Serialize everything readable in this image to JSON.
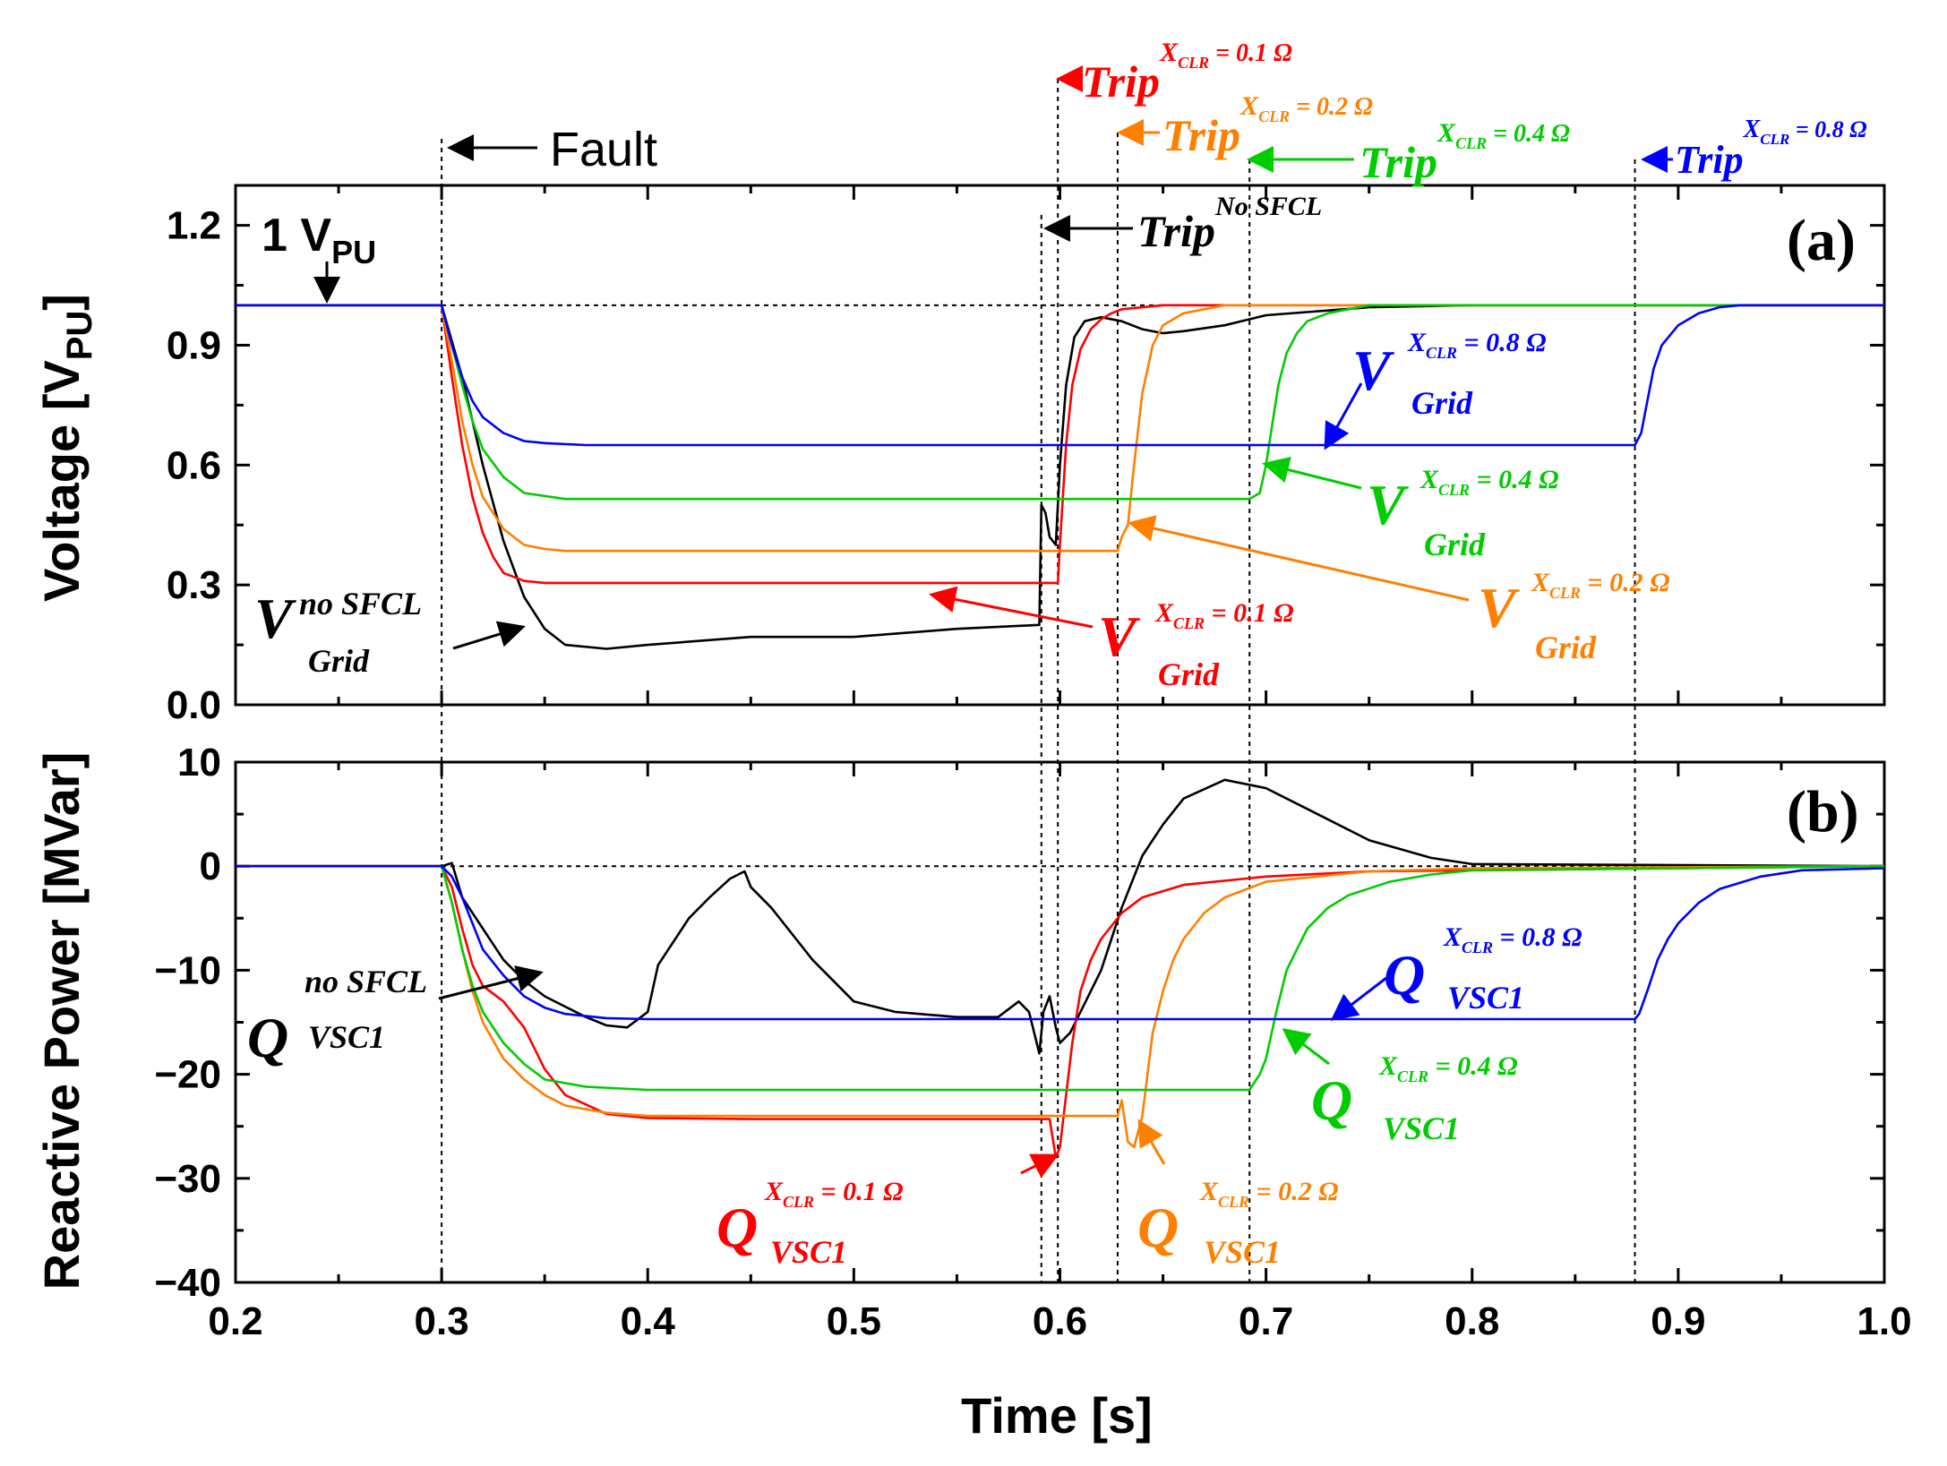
{
  "chart_data": [
    {
      "type": "line",
      "panel": "(a)",
      "ylabel": "Voltage [V",
      "ylabel_sub": "PU",
      "ylabel_close": "]",
      "xlim": [
        0.2,
        1.0
      ],
      "ylim": [
        0.0,
        1.3
      ],
      "yticks": [
        "0.0",
        "0.3",
        "0.6",
        "0.9",
        "1.2"
      ],
      "ytick_values": [
        0.0,
        0.3,
        0.6,
        0.9,
        1.2
      ],
      "reference_label_main": "1 V",
      "reference_label_sub": "PU",
      "reference_value": 1.0,
      "series": [
        {
          "name": "V Grid no SFCL",
          "color": "#000000",
          "x": [
            0.2,
            0.3,
            0.31,
            0.32,
            0.33,
            0.34,
            0.35,
            0.36,
            0.38,
            0.4,
            0.45,
            0.5,
            0.55,
            0.59,
            0.591,
            0.593,
            0.595,
            0.598,
            0.6,
            0.603,
            0.607,
            0.612,
            0.62,
            0.63,
            0.64,
            0.65,
            0.66,
            0.68,
            0.7,
            0.75,
            0.8,
            1.0
          ],
          "y": [
            1.0,
            1.0,
            0.82,
            0.6,
            0.41,
            0.27,
            0.19,
            0.15,
            0.14,
            0.15,
            0.17,
            0.17,
            0.19,
            0.2,
            0.5,
            0.48,
            0.42,
            0.4,
            0.6,
            0.8,
            0.92,
            0.96,
            0.97,
            0.96,
            0.94,
            0.93,
            0.935,
            0.95,
            0.975,
            0.995,
            1.0,
            1.0
          ]
        },
        {
          "name": "V Grid XCLR = 0.1 Ω",
          "color": "#ff0000",
          "x": [
            0.2,
            0.3,
            0.305,
            0.31,
            0.315,
            0.32,
            0.325,
            0.33,
            0.34,
            0.35,
            0.59,
            0.599,
            0.6,
            0.603,
            0.606,
            0.61,
            0.615,
            0.62,
            0.625,
            0.63,
            0.64,
            0.65,
            1.0
          ],
          "y": [
            1.0,
            1.0,
            0.82,
            0.65,
            0.52,
            0.43,
            0.37,
            0.33,
            0.31,
            0.305,
            0.305,
            0.305,
            0.4,
            0.65,
            0.8,
            0.89,
            0.94,
            0.965,
            0.98,
            0.99,
            0.995,
            1.0,
            1.0
          ]
        },
        {
          "name": "V Grid XCLR = 0.2 Ω",
          "color": "#ff8000",
          "x": [
            0.2,
            0.3,
            0.305,
            0.31,
            0.315,
            0.32,
            0.33,
            0.34,
            0.35,
            0.36,
            0.4,
            0.628,
            0.63,
            0.633,
            0.636,
            0.64,
            0.645,
            0.65,
            0.66,
            0.67,
            0.68,
            1.0
          ],
          "y": [
            1.0,
            1.0,
            0.86,
            0.71,
            0.6,
            0.52,
            0.44,
            0.4,
            0.39,
            0.385,
            0.385,
            0.385,
            0.42,
            0.45,
            0.6,
            0.78,
            0.9,
            0.95,
            0.98,
            0.99,
            1.0,
            1.0
          ]
        },
        {
          "name": "V Grid XCLR = 0.4 Ω",
          "color": "#00cc00",
          "x": [
            0.2,
            0.3,
            0.305,
            0.31,
            0.315,
            0.32,
            0.33,
            0.34,
            0.36,
            0.4,
            0.692,
            0.697,
            0.7,
            0.703,
            0.706,
            0.71,
            0.715,
            0.72,
            0.73,
            0.74,
            0.75,
            1.0
          ],
          "y": [
            1.0,
            1.0,
            0.9,
            0.8,
            0.71,
            0.64,
            0.57,
            0.53,
            0.515,
            0.515,
            0.515,
            0.53,
            0.6,
            0.7,
            0.8,
            0.88,
            0.93,
            0.96,
            0.98,
            0.99,
            1.0,
            1.0
          ]
        },
        {
          "name": "V Grid XCLR = 0.8 Ω",
          "color": "#0000ff",
          "x": [
            0.2,
            0.3,
            0.305,
            0.31,
            0.315,
            0.32,
            0.33,
            0.34,
            0.35,
            0.37,
            0.879,
            0.882,
            0.885,
            0.888,
            0.892,
            0.9,
            0.91,
            0.92,
            0.93,
            1.0
          ],
          "y": [
            1.0,
            1.0,
            0.9,
            0.82,
            0.76,
            0.72,
            0.68,
            0.66,
            0.655,
            0.65,
            0.65,
            0.68,
            0.76,
            0.84,
            0.9,
            0.95,
            0.98,
            0.995,
            1.0,
            1.0
          ]
        }
      ],
      "annotations": [
        {
          "main": "V",
          "sup": "no SFCL",
          "sub": "Grid",
          "color": "#000000"
        },
        {
          "main": "V",
          "sup": "X",
          "sup_sub": "CLR",
          "sup_tail": " = 0.1 Ω",
          "sub": "Grid",
          "color": "#ff0000"
        },
        {
          "main": "V",
          "sup": "X",
          "sup_sub": "CLR",
          "sup_tail": " = 0.2 Ω",
          "sub": "Grid",
          "color": "#ff8000"
        },
        {
          "main": "V",
          "sup": "X",
          "sup_sub": "CLR",
          "sup_tail": " = 0.4 Ω",
          "sub": "Grid",
          "color": "#00cc00"
        },
        {
          "main": "V",
          "sup": "X",
          "sup_sub": "CLR",
          "sup_tail": " = 0.8 Ω",
          "sub": "Grid",
          "color": "#0000ff"
        }
      ]
    },
    {
      "type": "line",
      "panel": "(b)",
      "ylabel": "Reactive Power [MVar]",
      "xlabel": "Time [s]",
      "xlim": [
        0.2,
        1.0
      ],
      "ylim": [
        -40,
        10
      ],
      "xticks": [
        "0.2",
        "0.3",
        "0.4",
        "0.5",
        "0.6",
        "0.7",
        "0.8",
        "0.9",
        "1.0"
      ],
      "xtick_values": [
        0.2,
        0.3,
        0.4,
        0.5,
        0.6,
        0.7,
        0.8,
        0.9,
        1.0
      ],
      "yticks": [
        "10",
        "0",
        "−10",
        "−20",
        "−30",
        "−40"
      ],
      "ytick_values": [
        10,
        0,
        -10,
        -20,
        -30,
        -40
      ],
      "series": [
        {
          "name": "Q VSC1 no SFCL",
          "color": "#000000",
          "x": [
            0.2,
            0.3,
            0.305,
            0.31,
            0.32,
            0.33,
            0.34,
            0.35,
            0.36,
            0.37,
            0.38,
            0.39,
            0.4,
            0.405,
            0.41,
            0.42,
            0.43,
            0.44,
            0.447,
            0.45,
            0.46,
            0.48,
            0.5,
            0.52,
            0.55,
            0.57,
            0.58,
            0.585,
            0.59,
            0.592,
            0.595,
            0.598,
            0.6,
            0.605,
            0.61,
            0.62,
            0.63,
            0.64,
            0.65,
            0.66,
            0.68,
            0.7,
            0.72,
            0.75,
            0.78,
            0.8,
            1.0
          ],
          "y": [
            0,
            0,
            0.3,
            -3,
            -6,
            -9,
            -11,
            -12.5,
            -13.5,
            -14.5,
            -15.3,
            -15.5,
            -14,
            -9.5,
            -8,
            -5,
            -3,
            -1.2,
            -0.5,
            -2,
            -4,
            -9,
            -13,
            -14,
            -14.5,
            -14.5,
            -13,
            -14,
            -18,
            -14,
            -12.5,
            -15.5,
            -17,
            -16,
            -14,
            -10,
            -4,
            1,
            4,
            6.5,
            8.3,
            7.5,
            5.5,
            2.5,
            0.8,
            0.2,
            0
          ]
        },
        {
          "name": "Q VSC1 XCLR = 0.1 Ω",
          "color": "#ff0000",
          "x": [
            0.2,
            0.3,
            0.305,
            0.31,
            0.315,
            0.32,
            0.33,
            0.34,
            0.35,
            0.36,
            0.38,
            0.4,
            0.45,
            0.55,
            0.595,
            0.598,
            0.6,
            0.603,
            0.606,
            0.61,
            0.615,
            0.62,
            0.63,
            0.64,
            0.66,
            0.7,
            0.75,
            1.0
          ],
          "y": [
            0,
            0,
            -2,
            -6,
            -9.5,
            -11.5,
            -13,
            -15.5,
            -19.5,
            -22,
            -23.8,
            -24.2,
            -24.3,
            -24.3,
            -24.3,
            -28,
            -27,
            -22,
            -17,
            -12,
            -9,
            -7,
            -4.5,
            -3,
            -1.8,
            -1,
            -0.5,
            0
          ]
        },
        {
          "name": "Q VSC1 XCLR = 0.2 Ω",
          "color": "#ff8000",
          "x": [
            0.2,
            0.3,
            0.305,
            0.31,
            0.315,
            0.32,
            0.33,
            0.34,
            0.35,
            0.36,
            0.38,
            0.4,
            0.5,
            0.628,
            0.63,
            0.633,
            0.636,
            0.64,
            0.645,
            0.65,
            0.655,
            0.66,
            0.67,
            0.68,
            0.7,
            0.75,
            0.8,
            1.0
          ],
          "y": [
            0,
            0,
            -3.5,
            -8,
            -12,
            -15,
            -18.5,
            -20.5,
            -22,
            -23,
            -23.7,
            -24,
            -24,
            -24,
            -22.5,
            -26.5,
            -27,
            -24,
            -16,
            -12,
            -9,
            -7,
            -4.5,
            -3,
            -1.5,
            -0.5,
            -0.2,
            0
          ]
        },
        {
          "name": "Q VSC1 XCLR = 0.4 Ω",
          "color": "#00cc00",
          "x": [
            0.2,
            0.3,
            0.305,
            0.31,
            0.315,
            0.32,
            0.33,
            0.34,
            0.35,
            0.37,
            0.4,
            0.45,
            0.692,
            0.697,
            0.7,
            0.705,
            0.71,
            0.715,
            0.72,
            0.73,
            0.74,
            0.76,
            0.78,
            0.8,
            1.0
          ],
          "y": [
            0,
            0,
            -3.5,
            -8,
            -11.5,
            -14,
            -17,
            -19,
            -20.5,
            -21.2,
            -21.5,
            -21.5,
            -21.5,
            -20,
            -18.5,
            -14,
            -10,
            -8,
            -6,
            -4,
            -2.8,
            -1.5,
            -0.8,
            -0.4,
            0
          ]
        },
        {
          "name": "Q VSC1 XCLR = 0.8 Ω",
          "color": "#0000ff",
          "x": [
            0.2,
            0.3,
            0.305,
            0.31,
            0.315,
            0.32,
            0.33,
            0.34,
            0.35,
            0.36,
            0.38,
            0.4,
            0.879,
            0.881,
            0.885,
            0.89,
            0.895,
            0.9,
            0.91,
            0.92,
            0.94,
            0.96,
            1.0
          ],
          "y": [
            0,
            0,
            -1,
            -3,
            -5.5,
            -8,
            -10.5,
            -12.5,
            -13.6,
            -14.2,
            -14.6,
            -14.7,
            -14.7,
            -14.2,
            -12,
            -9,
            -7,
            -5.5,
            -3.5,
            -2.2,
            -1,
            -0.4,
            -0.2
          ]
        }
      ],
      "annotations": [
        {
          "main": "Q",
          "sup": "no SFCL",
          "sub": "VSC1",
          "color": "#000000"
        },
        {
          "main": "Q",
          "sup": "X",
          "sup_sub": "CLR",
          "sup_tail": " = 0.1 Ω",
          "sub": "VSC1",
          "color": "#ff0000"
        },
        {
          "main": "Q",
          "sup": "X",
          "sup_sub": "CLR",
          "sup_tail": " = 0.2 Ω",
          "sub": "VSC1",
          "color": "#ff8000"
        },
        {
          "main": "Q",
          "sup": "X",
          "sup_sub": "CLR",
          "sup_tail": " = 0.4 Ω",
          "sub": "VSC1",
          "color": "#00cc00"
        },
        {
          "main": "Q",
          "sup": "X",
          "sup_sub": "CLR",
          "sup_tail": " = 0.8 Ω",
          "sub": "VSC1",
          "color": "#0000ff"
        }
      ]
    }
  ],
  "events": {
    "fault": {
      "label": "Fault",
      "time": 0.3
    },
    "trips": [
      {
        "label": "Trip",
        "sup": "No SFCL",
        "time": 0.591,
        "color": "#000000"
      },
      {
        "label": "Trip",
        "sup": "X",
        "sup_sub": "CLR",
        "sup_tail": " = 0.1 Ω",
        "time": 0.599,
        "color": "#ff0000"
      },
      {
        "label": "Trip",
        "sup": "X",
        "sup_sub": "CLR",
        "sup_tail": " = 0.2 Ω",
        "time": 0.628,
        "color": "#ff8000"
      },
      {
        "label": "Trip",
        "sup": "X",
        "sup_sub": "CLR",
        "sup_tail": " = 0.4 Ω",
        "time": 0.692,
        "color": "#00cc00"
      },
      {
        "label": "Trip",
        "sup": "X",
        "sup_sub": "CLR",
        "sup_tail": " = 0.8 Ω",
        "time": 0.879,
        "color": "#0000ff"
      }
    ]
  }
}
